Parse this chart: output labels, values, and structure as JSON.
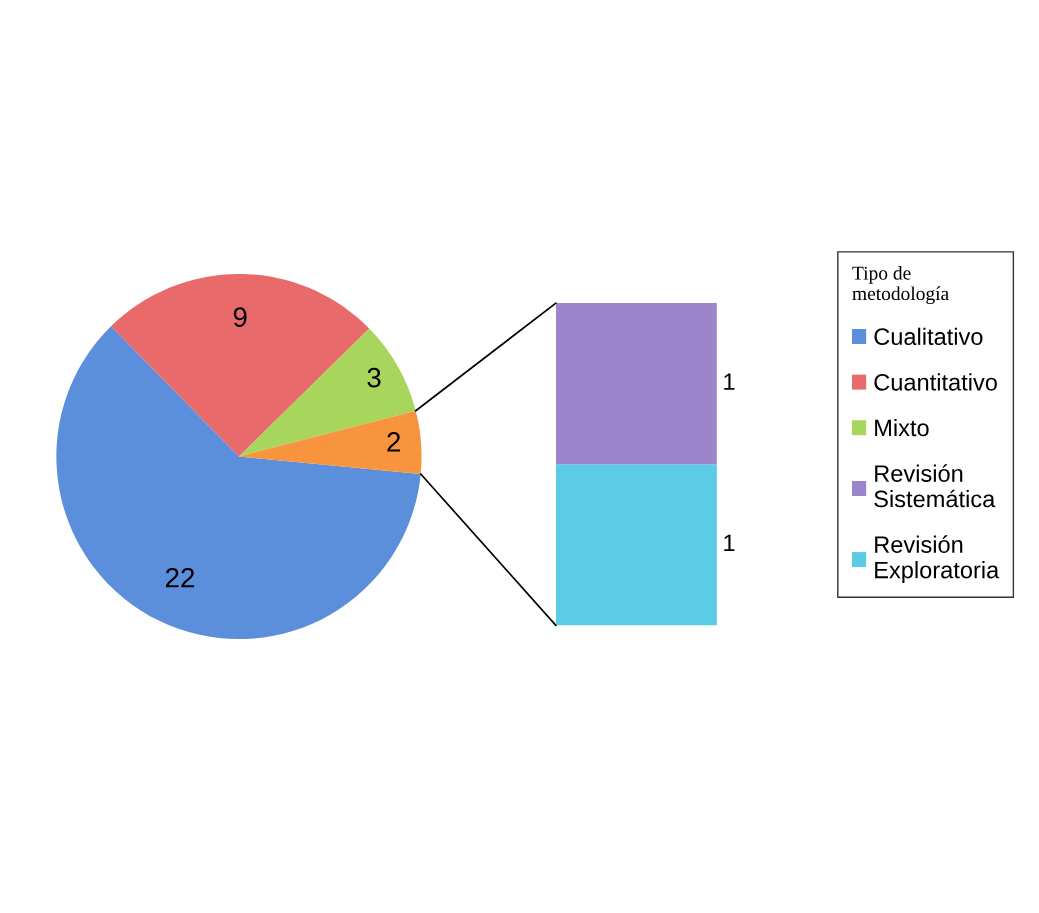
{
  "chart_data": [
    {
      "type": "pie",
      "categories": [
        "Cualitativo",
        "Cuantitativo",
        "Mixto",
        null
      ],
      "values": [
        22,
        9,
        3,
        2
      ],
      "colors": [
        "#5b8fdb",
        "#e86a6a",
        "#a8d65c",
        "#f9943e"
      ],
      "data_labels": true,
      "legend": "right",
      "legend_title": "Tipo de metodología"
    },
    {
      "type": "bar",
      "stacked": true,
      "categories": [
        null
      ],
      "series": [
        {
          "name": "Revisión Exploratoria",
          "color": "#5ccbe6",
          "values": [
            1
          ]
        },
        {
          "name": "Revisión Sistemática",
          "color": "#9d85cc",
          "values": [
            1
          ]
        }
      ],
      "data_labels": true,
      "legend": "right"
    }
  ]
}
